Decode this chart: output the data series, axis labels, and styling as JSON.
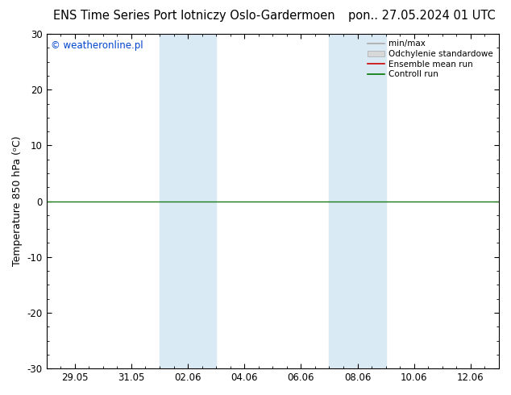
{
  "title_left": "ENS Time Series Port lotniczy Oslo-Gardermoen",
  "title_right": "pon.. 27.05.2024 01 UTC",
  "ylabel": "Temperature 850 hPa (ᵒC)",
  "ylim": [
    -30,
    30
  ],
  "yticks": [
    -30,
    -20,
    -10,
    0,
    10,
    20,
    30
  ],
  "xtick_labels": [
    "29.05",
    "31.05",
    "02.06",
    "04.06",
    "06.06",
    "08.06",
    "10.06",
    "12.06"
  ],
  "watermark": "© weatheronline.pl",
  "legend_labels": [
    "min/max",
    "Odchylenie standardowe",
    "Ensemble mean run",
    "Controll run"
  ],
  "shade_color": "#daeaf5",
  "background_color": "#ffffff",
  "zero_line_color": "#1a7a1a",
  "title_fontsize": 10.5,
  "label_fontsize": 9,
  "tick_fontsize": 8.5,
  "watermark_color": "#0044cc",
  "shade_bands": [
    [
      4.0,
      5.0
    ],
    [
      5.0,
      6.0
    ],
    [
      10.0,
      11.0
    ],
    [
      11.0,
      12.0
    ]
  ],
  "xtick_positions": [
    1,
    3,
    5,
    7,
    9,
    11,
    13,
    15
  ],
  "xlim": [
    0,
    16
  ]
}
